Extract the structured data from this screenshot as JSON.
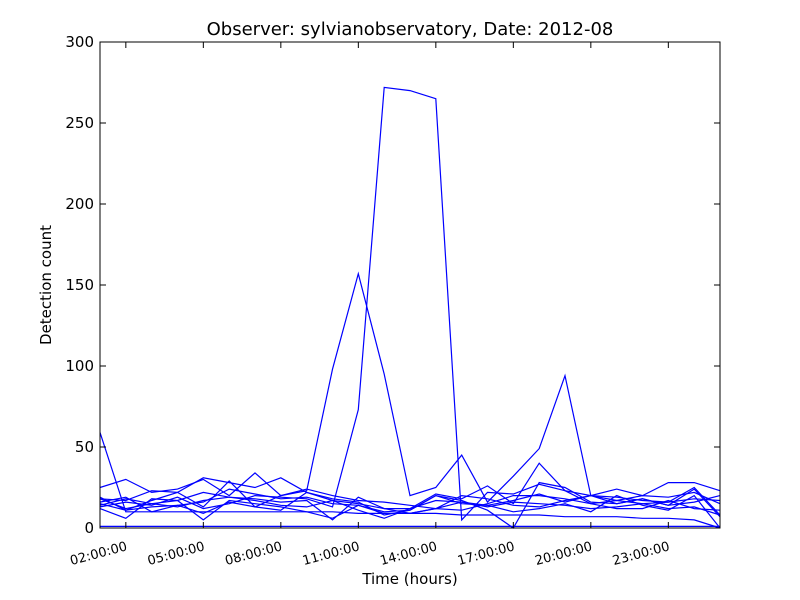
{
  "chart_data": {
    "type": "line",
    "title": "Observer: sylvianobservatory, Date: 2012-08",
    "xlabel": "Time (hours)",
    "ylabel": "Detection count",
    "x_ticks": [
      "02:00:00",
      "05:00:00",
      "08:00:00",
      "11:00:00",
      "14:00:00",
      "17:00:00",
      "20:00:00",
      "23:00:00"
    ],
    "y_ticks": [
      "0",
      "50",
      "100",
      "150",
      "200",
      "250",
      "300"
    ],
    "x_range_hours": [
      1,
      25
    ],
    "ylim": [
      0,
      300
    ],
    "grid": false,
    "line_color": "#0000ff",
    "x_hours": [
      1,
      2,
      3,
      4,
      5,
      6,
      7,
      8,
      9,
      10,
      11,
      12,
      13,
      14,
      15,
      16,
      17,
      18,
      19,
      20,
      21,
      22,
      23,
      24,
      25
    ],
    "series": [
      {
        "values": [
          59,
          10,
          10,
          10,
          10,
          10,
          10,
          10,
          10,
          10,
          9,
          9,
          9,
          9,
          8,
          8,
          8,
          8,
          7,
          7,
          7,
          6,
          6,
          5,
          0
        ]
      },
      {
        "values": [
          25,
          30,
          22,
          24,
          30,
          20,
          34,
          20,
          24,
          20,
          17,
          16,
          14,
          12,
          20,
          18,
          14,
          13,
          17,
          20,
          19,
          17,
          16,
          18,
          17
        ]
      },
      {
        "values": [
          18,
          17,
          23,
          22,
          31,
          28,
          25,
          31,
          22,
          17,
          15,
          12,
          12,
          21,
          18,
          26,
          15,
          40,
          23,
          20,
          24,
          20,
          28,
          28,
          23
        ]
      },
      {
        "values": [
          15,
          11,
          17,
          22,
          13,
          29,
          13,
          20,
          23,
          98,
          157,
          95,
          20,
          25,
          45,
          16,
          32,
          49,
          94,
          20,
          17,
          20,
          19,
          22,
          15
        ]
      },
      {
        "values": [
          13,
          16,
          14,
          19,
          12,
          15,
          20,
          19,
          18,
          13,
          73,
          272,
          270,
          265,
          5,
          22,
          21,
          27,
          23,
          15,
          12,
          12,
          17,
          12,
          11
        ]
      },
      {
        "values": [
          18,
          12,
          15,
          17,
          22,
          19,
          18,
          16,
          17,
          5,
          19,
          12,
          9,
          12,
          16,
          14,
          17,
          21,
          16,
          20,
          15,
          18,
          14,
          16,
          20
        ]
      },
      {
        "values": [
          12,
          6,
          18,
          17,
          5,
          17,
          15,
          13,
          10,
          6,
          14,
          9,
          9,
          12,
          11,
          15,
          20,
          20,
          18,
          15,
          17,
          15,
          16,
          25,
          8
        ]
      },
      {
        "values": [
          16,
          19,
          10,
          14,
          16,
          24,
          21,
          18,
          19,
          15,
          14,
          10,
          11,
          20,
          17,
          11,
          0,
          28,
          25,
          16,
          15,
          18,
          14,
          24,
          7
        ]
      },
      {
        "values": [
          19,
          11,
          13,
          14,
          9,
          16,
          13,
          11,
          22,
          18,
          16,
          8,
          11,
          20,
          15,
          14,
          10,
          12,
          15,
          10,
          20,
          14,
          11,
          20,
          0
        ]
      },
      {
        "values": [
          14,
          18,
          15,
          13,
          17,
          19,
          17,
          14,
          13,
          17,
          11,
          6,
          12,
          17,
          16,
          13,
          16,
          15,
          14,
          12,
          13,
          15,
          12,
          13,
          8
        ]
      },
      {
        "values": [
          1,
          1,
          1,
          1,
          1,
          1,
          1,
          1,
          1,
          1,
          1,
          1,
          1,
          1,
          1,
          1,
          1,
          1,
          1,
          1,
          1,
          1,
          1,
          1,
          1
        ]
      }
    ]
  }
}
